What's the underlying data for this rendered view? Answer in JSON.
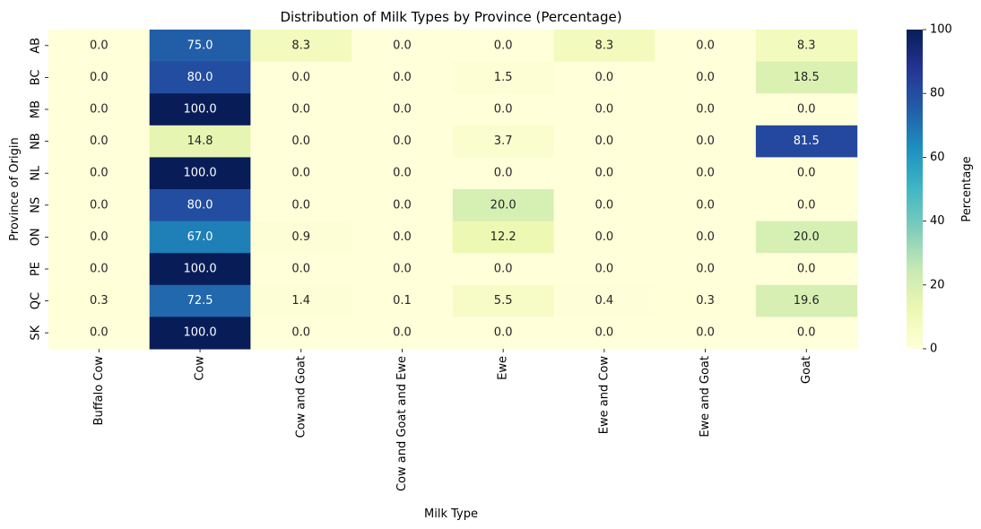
{
  "chart_data": {
    "type": "heatmap",
    "title": "Distribution of Milk Types by Province (Percentage)",
    "xlabel": "Milk Type",
    "ylabel": "Province of Origin",
    "x_categories": [
      "Buffalo Cow",
      "Cow",
      "Cow and Goat",
      "Cow and Goat and Ewe",
      "Ewe",
      "Ewe and Cow",
      "Ewe and Goat",
      "Goat"
    ],
    "y_categories": [
      "AB",
      "BC",
      "MB",
      "NB",
      "NL",
      "NS",
      "ON",
      "PE",
      "QC",
      "SK"
    ],
    "values": [
      [
        0.0,
        75.0,
        8.3,
        0.0,
        0.0,
        8.3,
        0.0,
        8.3
      ],
      [
        0.0,
        80.0,
        0.0,
        0.0,
        1.5,
        0.0,
        0.0,
        18.5
      ],
      [
        0.0,
        100.0,
        0.0,
        0.0,
        0.0,
        0.0,
        0.0,
        0.0
      ],
      [
        0.0,
        14.8,
        0.0,
        0.0,
        3.7,
        0.0,
        0.0,
        81.5
      ],
      [
        0.0,
        100.0,
        0.0,
        0.0,
        0.0,
        0.0,
        0.0,
        0.0
      ],
      [
        0.0,
        80.0,
        0.0,
        0.0,
        20.0,
        0.0,
        0.0,
        0.0
      ],
      [
        0.0,
        67.0,
        0.9,
        0.0,
        12.2,
        0.0,
        0.0,
        20.0
      ],
      [
        0.0,
        100.0,
        0.0,
        0.0,
        0.0,
        0.0,
        0.0,
        0.0
      ],
      [
        0.3,
        72.5,
        1.4,
        0.1,
        5.5,
        0.4,
        0.3,
        19.6
      ],
      [
        0.0,
        100.0,
        0.0,
        0.0,
        0.0,
        0.0,
        0.0,
        0.0
      ]
    ],
    "value_format": "0.0",
    "colorbar": {
      "label": "Percentage",
      "min": 0,
      "max": 100,
      "ticks": [
        "0",
        "20",
        "40",
        "60",
        "80",
        "100"
      ],
      "colormap": "YlGnBu",
      "colormap_stops": [
        "#ffffd9",
        "#edf8b1",
        "#c7e9b4",
        "#7fcdbb",
        "#41b6c4",
        "#1d91c0",
        "#225ea8",
        "#253494",
        "#081d58"
      ]
    },
    "grid": false
  }
}
